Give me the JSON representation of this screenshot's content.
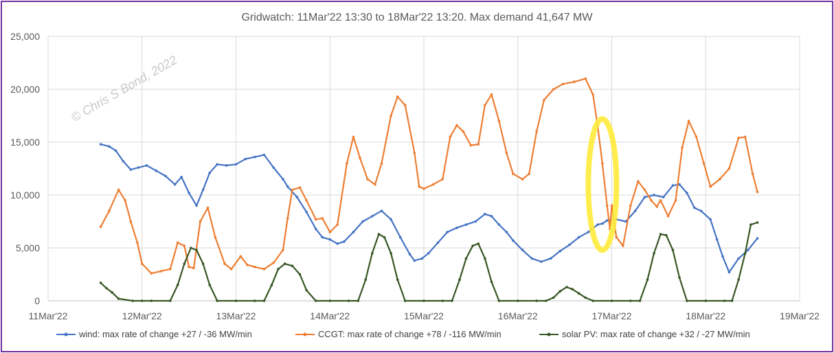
{
  "chart_data": {
    "type": "line",
    "title": "Gridwatch:  11Mar'22 13:30  to 18Mar'22 13:20.   Max demand 41,647 MW",
    "watermark": "© Chris S Bond, 2022",
    "ylim": [
      0,
      25000
    ],
    "yticks": [
      0,
      5000,
      10000,
      15000,
      20000,
      25000
    ],
    "ytick_labels": [
      "0",
      "5,000",
      "10,000",
      "15,000",
      "20,000",
      "25,000"
    ],
    "xlim": [
      11,
      19
    ],
    "xticks": [
      11,
      12,
      13,
      14,
      15,
      16,
      17,
      18,
      19
    ],
    "xtick_labels": [
      "11Mar'22",
      "12Mar'22",
      "13Mar'22",
      "14Mar'22",
      "15Mar'22",
      "16Mar'22",
      "17Mar'22",
      "18Mar'22",
      "19Mar'22"
    ],
    "grid": true,
    "legend_position": "bottom",
    "highlight": {
      "label": "yellow loop",
      "x_range": [
        16.75,
        17.05
      ],
      "y_range": [
        4800,
        17200
      ],
      "color": "#ffeb3b"
    },
    "series": [
      {
        "name": "wind: max rate of change +27 / -36 MW/min",
        "color": "#4472c4",
        "x": [
          11.56,
          11.65,
          11.72,
          11.8,
          11.88,
          11.96,
          12.05,
          12.15,
          12.25,
          12.35,
          12.42,
          12.5,
          12.58,
          12.65,
          12.72,
          12.8,
          12.9,
          13.0,
          13.1,
          13.2,
          13.3,
          13.4,
          13.5,
          13.55,
          13.65,
          13.75,
          13.85,
          13.92,
          14.0,
          14.08,
          14.15,
          14.25,
          14.35,
          14.45,
          14.55,
          14.65,
          14.75,
          14.85,
          14.9,
          14.98,
          15.05,
          15.15,
          15.25,
          15.35,
          15.45,
          15.55,
          15.65,
          15.72,
          15.8,
          15.88,
          15.95,
          16.05,
          16.15,
          16.25,
          16.35,
          16.45,
          16.55,
          16.65,
          16.75,
          16.85,
          16.9,
          16.95,
          17.05,
          17.15,
          17.25,
          17.35,
          17.45,
          17.55,
          17.65,
          17.72,
          17.8,
          17.88,
          17.95,
          18.05,
          18.12,
          18.18,
          18.25,
          18.35,
          18.45,
          18.55
        ],
        "values": [
          14800,
          14600,
          14200,
          13200,
          12400,
          12600,
          12800,
          12300,
          11800,
          11000,
          11700,
          10200,
          9000,
          10500,
          12100,
          12900,
          12800,
          12900,
          13400,
          13600,
          13800,
          12600,
          11500,
          10800,
          9800,
          8400,
          6800,
          6000,
          5800,
          5400,
          5600,
          6500,
          7500,
          8000,
          8500,
          7700,
          6000,
          4400,
          3800,
          4000,
          4500,
          5500,
          6500,
          6900,
          7200,
          7500,
          8200,
          8000,
          7200,
          6500,
          5700,
          4800,
          4000,
          3700,
          4000,
          4700,
          5300,
          6000,
          6500,
          7200,
          7300,
          7600,
          7700,
          7500,
          8500,
          9800,
          10000,
          9800,
          10900,
          11000,
          10200,
          8800,
          8500,
          7700,
          5800,
          4200,
          2700,
          4000,
          4800,
          5900
        ]
      },
      {
        "name": "CCGT: max rate of change +78 / -116 MW/min",
        "color": "#ed7d31",
        "x": [
          11.56,
          11.65,
          11.75,
          11.82,
          11.88,
          11.95,
          12.0,
          12.1,
          12.2,
          12.3,
          12.38,
          12.45,
          12.5,
          12.55,
          12.62,
          12.7,
          12.78,
          12.88,
          12.95,
          13.05,
          13.12,
          13.2,
          13.3,
          13.4,
          13.5,
          13.55,
          13.6,
          13.68,
          13.75,
          13.85,
          13.92,
          14.0,
          14.08,
          14.18,
          14.25,
          14.32,
          14.4,
          14.48,
          14.55,
          14.65,
          14.72,
          14.8,
          14.9,
          14.95,
          15.0,
          15.1,
          15.2,
          15.28,
          15.35,
          15.42,
          15.5,
          15.58,
          15.65,
          15.72,
          15.8,
          15.88,
          15.95,
          16.05,
          16.12,
          16.2,
          16.28,
          16.38,
          16.48,
          16.6,
          16.72,
          16.8,
          16.85,
          16.9,
          16.95,
          16.98,
          17.0,
          17.05,
          17.12,
          17.2,
          17.28,
          17.35,
          17.42,
          17.48,
          17.52,
          17.6,
          17.68,
          17.75,
          17.82,
          17.9,
          17.98,
          18.05,
          18.15,
          18.25,
          18.35,
          18.42,
          18.5,
          18.55
        ],
        "values": [
          7000,
          8500,
          10500,
          9500,
          7500,
          5500,
          3500,
          2600,
          2800,
          3000,
          5500,
          5200,
          3200,
          3100,
          7500,
          8800,
          6000,
          3500,
          3000,
          4200,
          3400,
          3200,
          3000,
          3600,
          4800,
          7800,
          10500,
          10700,
          9500,
          7700,
          7800,
          6500,
          7200,
          13000,
          15500,
          13500,
          11500,
          11000,
          13000,
          17500,
          19300,
          18500,
          14000,
          10800,
          10600,
          11000,
          11500,
          15500,
          16600,
          16000,
          14700,
          14800,
          18500,
          19500,
          17000,
          14000,
          12000,
          11500,
          12000,
          16000,
          19000,
          20000,
          20500,
          20700,
          21000,
          19500,
          16500,
          13000,
          9000,
          6800,
          9000,
          6000,
          5200,
          9000,
          11300,
          10500,
          9500,
          8900,
          9500,
          8000,
          9500,
          14500,
          17000,
          15500,
          13000,
          10800,
          11500,
          12500,
          15400,
          15500,
          12000,
          10300
        ]
      },
      {
        "name": "solar PV: max rate of change +32 / -27 MW/min",
        "color": "#375623",
        "x": [
          11.56,
          11.62,
          11.68,
          11.75,
          11.9,
          12.0,
          12.1,
          12.3,
          12.38,
          12.45,
          12.52,
          12.58,
          12.65,
          12.72,
          12.8,
          13.0,
          13.2,
          13.3,
          13.38,
          13.45,
          13.52,
          13.6,
          13.68,
          13.75,
          13.85,
          14.0,
          14.2,
          14.3,
          14.38,
          14.45,
          14.52,
          14.58,
          14.65,
          14.72,
          14.8,
          15.0,
          15.2,
          15.3,
          15.38,
          15.45,
          15.52,
          15.58,
          15.65,
          15.72,
          15.8,
          16.0,
          16.2,
          16.3,
          16.38,
          16.45,
          16.52,
          16.58,
          16.65,
          16.72,
          16.8,
          17.0,
          17.2,
          17.3,
          17.38,
          17.45,
          17.52,
          17.58,
          17.65,
          17.72,
          17.8,
          18.0,
          18.2,
          18.28,
          18.35,
          18.42,
          18.48,
          18.55
        ],
        "values": [
          1700,
          1200,
          800,
          200,
          0,
          0,
          0,
          0,
          1500,
          3500,
          5000,
          4800,
          3500,
          1500,
          0,
          0,
          0,
          0,
          1500,
          3000,
          3500,
          3300,
          2500,
          1000,
          0,
          0,
          0,
          0,
          2000,
          4500,
          6300,
          6000,
          4500,
          2000,
          0,
          0,
          0,
          0,
          2000,
          4000,
          5200,
          5400,
          4000,
          1800,
          0,
          0,
          0,
          0,
          300,
          900,
          1300,
          1100,
          700,
          300,
          0,
          0,
          0,
          0,
          2000,
          4500,
          6300,
          6200,
          4800,
          2200,
          0,
          0,
          0,
          0,
          2000,
          4500,
          7200,
          7400
        ]
      }
    ]
  }
}
